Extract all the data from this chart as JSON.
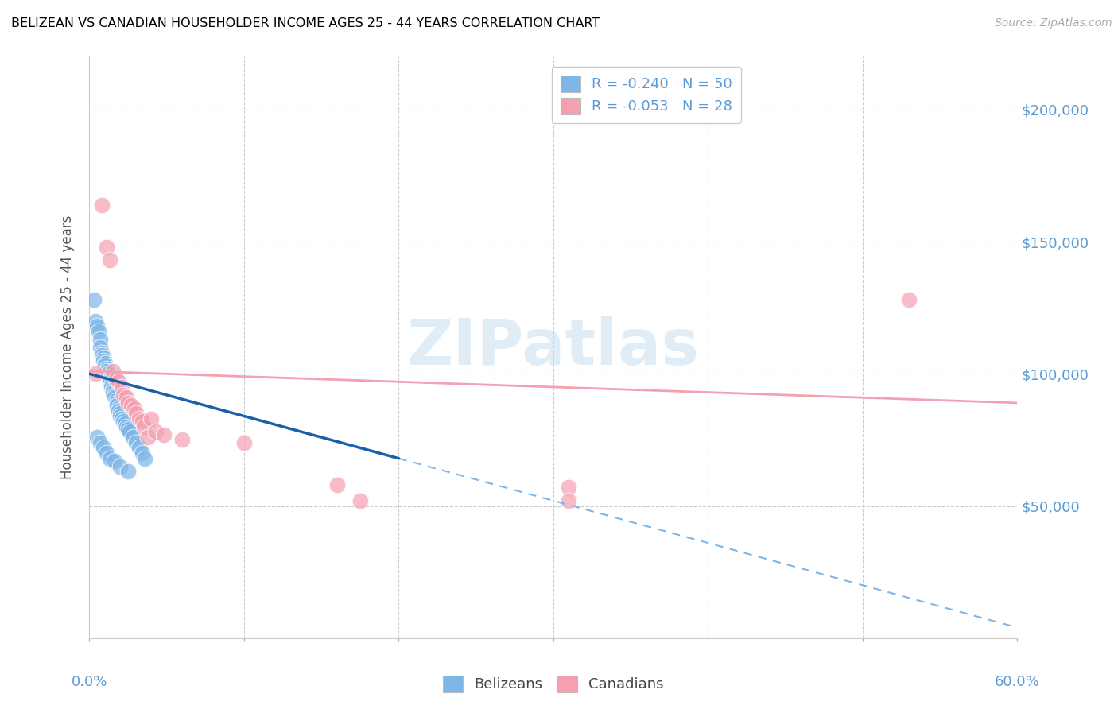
{
  "title": "BELIZEAN VS CANADIAN HOUSEHOLDER INCOME AGES 25 - 44 YEARS CORRELATION CHART",
  "source": "Source: ZipAtlas.com",
  "ylabel": "Householder Income Ages 25 - 44 years",
  "xlim": [
    0.0,
    0.6
  ],
  "ylim": [
    0,
    220000
  ],
  "yticks": [
    0,
    50000,
    100000,
    150000,
    200000
  ],
  "ytick_labels": [
    "",
    "$50,000",
    "$100,000",
    "$150,000",
    "$200,000"
  ],
  "xticks": [
    0.0,
    0.1,
    0.2,
    0.3,
    0.4,
    0.5,
    0.6
  ],
  "watermark": "ZIPatlas",
  "legend_blue_label": "R = -0.240   N = 50",
  "legend_pink_label": "R = -0.053   N = 28",
  "legend_bottom_blue": "Belizeans",
  "legend_bottom_pink": "Canadians",
  "blue_color": "#7eb6e8",
  "pink_color": "#f4a0b0",
  "trendline_blue_solid_color": "#1a5fac",
  "trendline_blue_dash_color": "#7eb6e8",
  "trendline_pink_color": "#f4a0b0",
  "belizean_x": [
    0.003,
    0.004,
    0.005,
    0.006,
    0.007,
    0.007,
    0.008,
    0.008,
    0.009,
    0.009,
    0.01,
    0.01,
    0.011,
    0.011,
    0.012,
    0.012,
    0.013,
    0.013,
    0.014,
    0.014,
    0.015,
    0.015,
    0.016,
    0.016,
    0.017,
    0.018,
    0.018,
    0.019,
    0.019,
    0.02,
    0.02,
    0.021,
    0.022,
    0.023,
    0.024,
    0.025,
    0.026,
    0.028,
    0.03,
    0.032,
    0.034,
    0.036,
    0.005,
    0.007,
    0.009,
    0.011,
    0.013,
    0.016,
    0.02,
    0.025
  ],
  "belizean_y": [
    128000,
    120000,
    118000,
    116000,
    113000,
    110000,
    108000,
    107000,
    106000,
    105000,
    104000,
    103000,
    102000,
    101000,
    100000,
    99000,
    98000,
    97000,
    96000,
    95000,
    94000,
    93000,
    92000,
    91000,
    90000,
    89000,
    88000,
    87000,
    86000,
    85000,
    84000,
    83000,
    82000,
    81000,
    80000,
    79000,
    78000,
    76000,
    74000,
    72000,
    70000,
    68000,
    76000,
    74000,
    72000,
    70000,
    68000,
    67000,
    65000,
    63000
  ],
  "canadian_x": [
    0.004,
    0.008,
    0.011,
    0.013,
    0.015,
    0.017,
    0.019,
    0.021,
    0.022,
    0.024,
    0.025,
    0.027,
    0.029,
    0.03,
    0.032,
    0.034,
    0.035,
    0.038,
    0.04,
    0.043,
    0.048,
    0.06,
    0.1,
    0.16,
    0.175,
    0.31,
    0.31,
    0.53
  ],
  "canadian_y": [
    100000,
    164000,
    148000,
    143000,
    101000,
    98000,
    97000,
    95000,
    92000,
    91000,
    89000,
    88000,
    87000,
    85000,
    83000,
    82000,
    80000,
    76000,
    83000,
    78000,
    77000,
    75000,
    74000,
    58000,
    52000,
    57000,
    52000,
    128000
  ],
  "trendline_blue_x0": 0.0,
  "trendline_blue_y0": 100000,
  "trendline_blue_x1": 0.2,
  "trendline_blue_y1": 68000,
  "trendline_blue_dash_x1": 0.6,
  "trendline_blue_dash_y1": 4000,
  "trendline_pink_x0": 0.0,
  "trendline_pink_y0": 101000,
  "trendline_pink_x1": 0.6,
  "trendline_pink_y1": 89000
}
